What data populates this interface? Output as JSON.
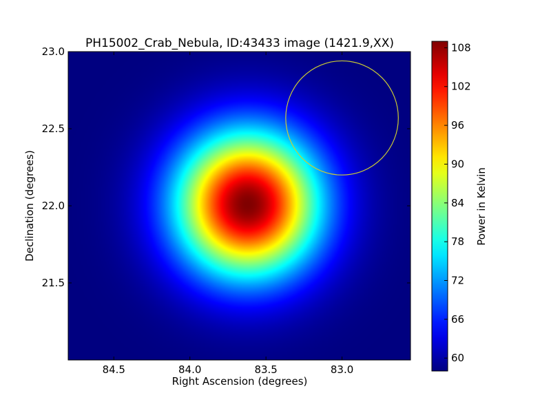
{
  "chart_data": {
    "type": "heatmap",
    "title": "PH15002_Crab_Nebula, ID:43433 image (1421.9,XX)",
    "xlabel": "Right Ascension (degrees)",
    "ylabel": "Declination (degrees)",
    "xlim": [
      84.8,
      82.55
    ],
    "ylim": [
      21.0,
      23.0
    ],
    "x_ticks": [
      84.5,
      84.0,
      83.5,
      83.0
    ],
    "x_tick_labels": [
      "84.5",
      "84.0",
      "83.5",
      "83.0"
    ],
    "y_ticks": [
      21.5,
      22.0,
      22.5,
      23.0
    ],
    "y_tick_labels": [
      "21.5",
      "22.0",
      "22.5",
      "23.0"
    ],
    "grid": false,
    "colormap": "jet",
    "source": {
      "ra": 83.62,
      "dec": 22.01,
      "peak": 109,
      "background": 58,
      "sigma_deg": 0.33
    },
    "colorbar": {
      "label": "Power in Kelvin",
      "range": [
        58,
        109
      ],
      "ticks": [
        60,
        66,
        72,
        78,
        84,
        90,
        96,
        102,
        108
      ],
      "tick_labels": [
        "60",
        "66",
        "72",
        "78",
        "84",
        "90",
        "96",
        "102",
        "108"
      ]
    },
    "circle_annotation": {
      "ra": 83.0,
      "dec": 22.57,
      "radius_deg": 0.37,
      "color": "#cccc33"
    }
  }
}
